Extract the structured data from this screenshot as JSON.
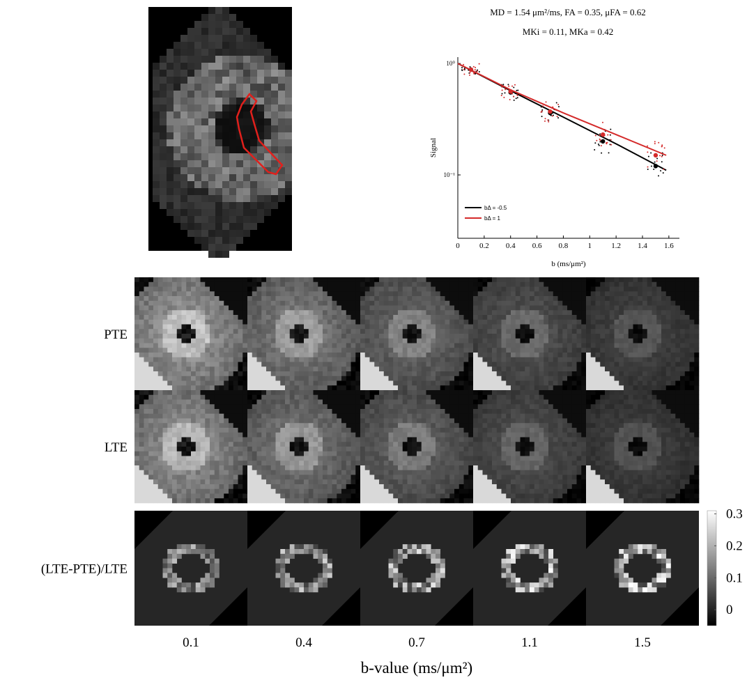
{
  "roi_image": {
    "roi_color": "#e0201c"
  },
  "chart_data": {
    "type": "line",
    "title": "MD = 1.54 μm²/ms, FA = 0.35, μFA = 0.62",
    "subtitle": "MKi = 0.11, MKa = 0.42",
    "x_label": "b (ms/μm²)",
    "y_label": "Signal",
    "x": [
      0,
      0.4,
      0.8,
      1.2,
      1.58
    ],
    "series": [
      {
        "name": "bΔ = -0.5",
        "color": "#000000",
        "values": [
          1.0,
          0.57,
          0.33,
          0.19,
          0.11
        ],
        "marker_x": [
          0.1,
          0.4,
          0.7,
          1.1,
          1.5
        ],
        "marker_values": [
          0.88,
          0.55,
          0.36,
          0.2,
          0.12
        ]
      },
      {
        "name": "bΔ = 1",
        "color": "#d42a2a",
        "values": [
          1.0,
          0.58,
          0.36,
          0.23,
          0.15
        ],
        "marker_x": [
          0.1,
          0.4,
          0.7,
          1.1,
          1.5
        ],
        "marker_values": [
          0.88,
          0.56,
          0.37,
          0.23,
          0.15
        ]
      }
    ],
    "xlim": [
      0,
      1.68
    ],
    "xticks": [
      0,
      0.2,
      0.4,
      0.6,
      0.8,
      1,
      1.2,
      1.4,
      1.6
    ],
    "ylim": [
      0.027,
      1.14
    ],
    "log_y": true,
    "yticks": [
      {
        "value": 0.1,
        "label": "10⁻¹"
      },
      {
        "value": 1,
        "label": "10⁰"
      }
    ],
    "legend": "lower left"
  },
  "image_grid": {
    "row_labels": [
      "PTE",
      "LTE",
      "(LTE-PTE)/LTE"
    ],
    "column_labels": [
      "0.1",
      "0.4",
      "0.7",
      "1.1",
      "1.5"
    ],
    "x_label": "b-value (ms/μm²)",
    "colorbar": {
      "lim": [
        -0.05,
        0.31
      ],
      "ticks": [
        0,
        0.1,
        0.2,
        0.3
      ]
    }
  }
}
